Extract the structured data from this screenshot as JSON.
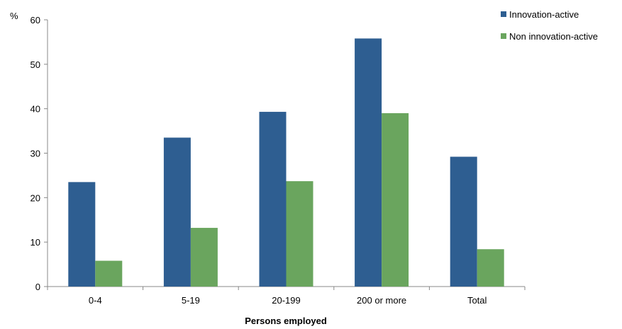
{
  "chart_data": {
    "type": "bar",
    "categories": [
      "0-4",
      "5-19",
      "20-199",
      "200 or more",
      "Total"
    ],
    "series": [
      {
        "name": "Innovation-active",
        "values": [
          23.5,
          33.5,
          39.3,
          55.8,
          29.2
        ],
        "color": "#2e5e91"
      },
      {
        "name": "Non innovation-active",
        "values": [
          5.8,
          13.2,
          23.7,
          39.0,
          8.4
        ],
        "color": "#6aa55e"
      }
    ],
    "title": "",
    "xlabel": "Persons employed",
    "ylabel": "%",
    "ylim": [
      0,
      60
    ],
    "yticks": [
      "0",
      "10",
      "20",
      "30",
      "40",
      "50",
      "60"
    ],
    "grid": false,
    "legend_position": "top-right"
  }
}
